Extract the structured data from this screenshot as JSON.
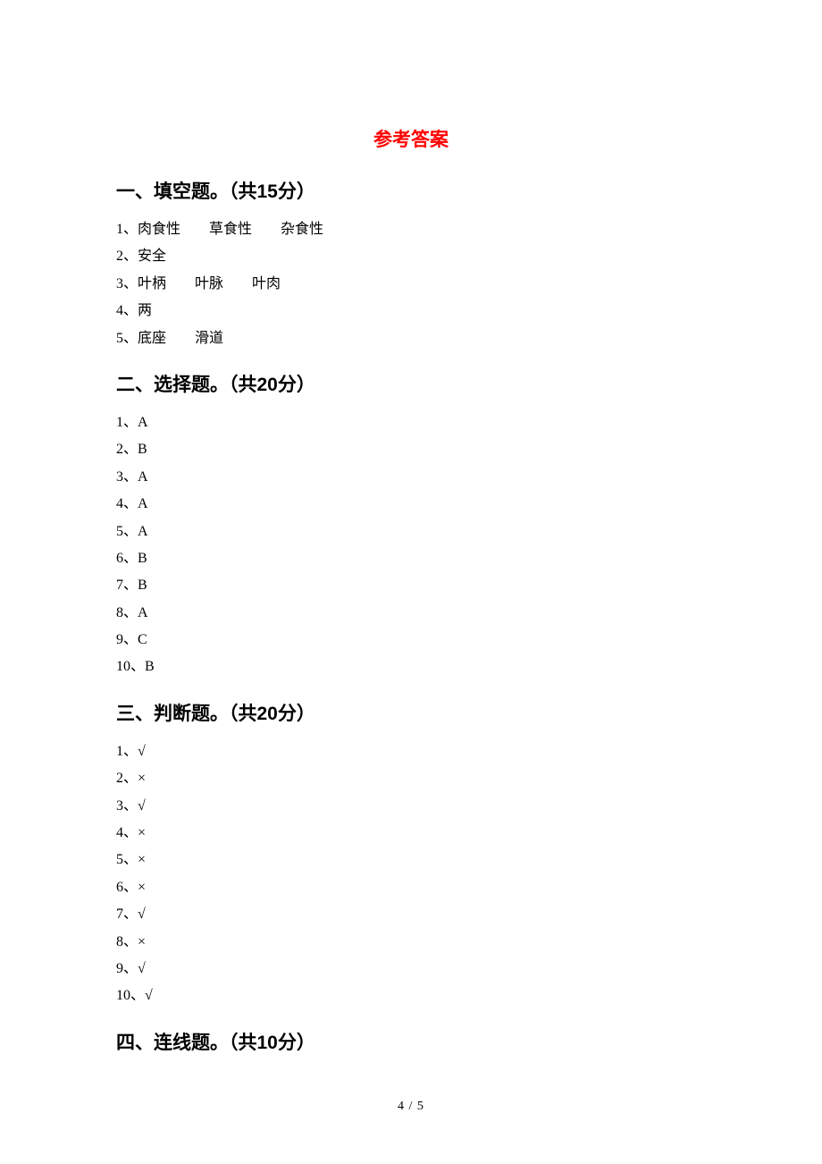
{
  "title": "参考答案",
  "sections": {
    "fill_blank": {
      "heading": "一、填空题。（共15分）",
      "items": [
        {
          "num": "1、",
          "parts": [
            "肉食性",
            "草食性",
            "杂食性"
          ]
        },
        {
          "num": "2、",
          "parts": [
            "安全"
          ]
        },
        {
          "num": "3、",
          "parts": [
            "叶柄",
            "叶脉",
            "叶肉"
          ]
        },
        {
          "num": "4、",
          "parts": [
            "两"
          ]
        },
        {
          "num": "5、",
          "parts": [
            "底座",
            "滑道"
          ]
        }
      ]
    },
    "choice": {
      "heading": "二、选择题。（共20分）",
      "items": [
        {
          "num": "1、",
          "ans": "A"
        },
        {
          "num": "2、",
          "ans": "B"
        },
        {
          "num": "3、",
          "ans": "A"
        },
        {
          "num": "4、",
          "ans": "A"
        },
        {
          "num": "5、",
          "ans": "A"
        },
        {
          "num": "6、",
          "ans": "B"
        },
        {
          "num": "7、",
          "ans": "B"
        },
        {
          "num": "8、",
          "ans": "A"
        },
        {
          "num": "9、",
          "ans": "C"
        },
        {
          "num": "10、",
          "ans": "B"
        }
      ]
    },
    "judge": {
      "heading": "三、判断题。（共20分）",
      "items": [
        {
          "num": "1、",
          "ans": "√"
        },
        {
          "num": "2、",
          "ans": "×"
        },
        {
          "num": "3、",
          "ans": "√"
        },
        {
          "num": "4、",
          "ans": "×"
        },
        {
          "num": "5、",
          "ans": "×"
        },
        {
          "num": "6、",
          "ans": "×"
        },
        {
          "num": "7、",
          "ans": "√"
        },
        {
          "num": "8、",
          "ans": "×"
        },
        {
          "num": "9、",
          "ans": "√"
        },
        {
          "num": "10、",
          "ans": "√"
        }
      ]
    },
    "match": {
      "heading": "四、连线题。（共10分）"
    }
  },
  "page_number": "4 / 5"
}
